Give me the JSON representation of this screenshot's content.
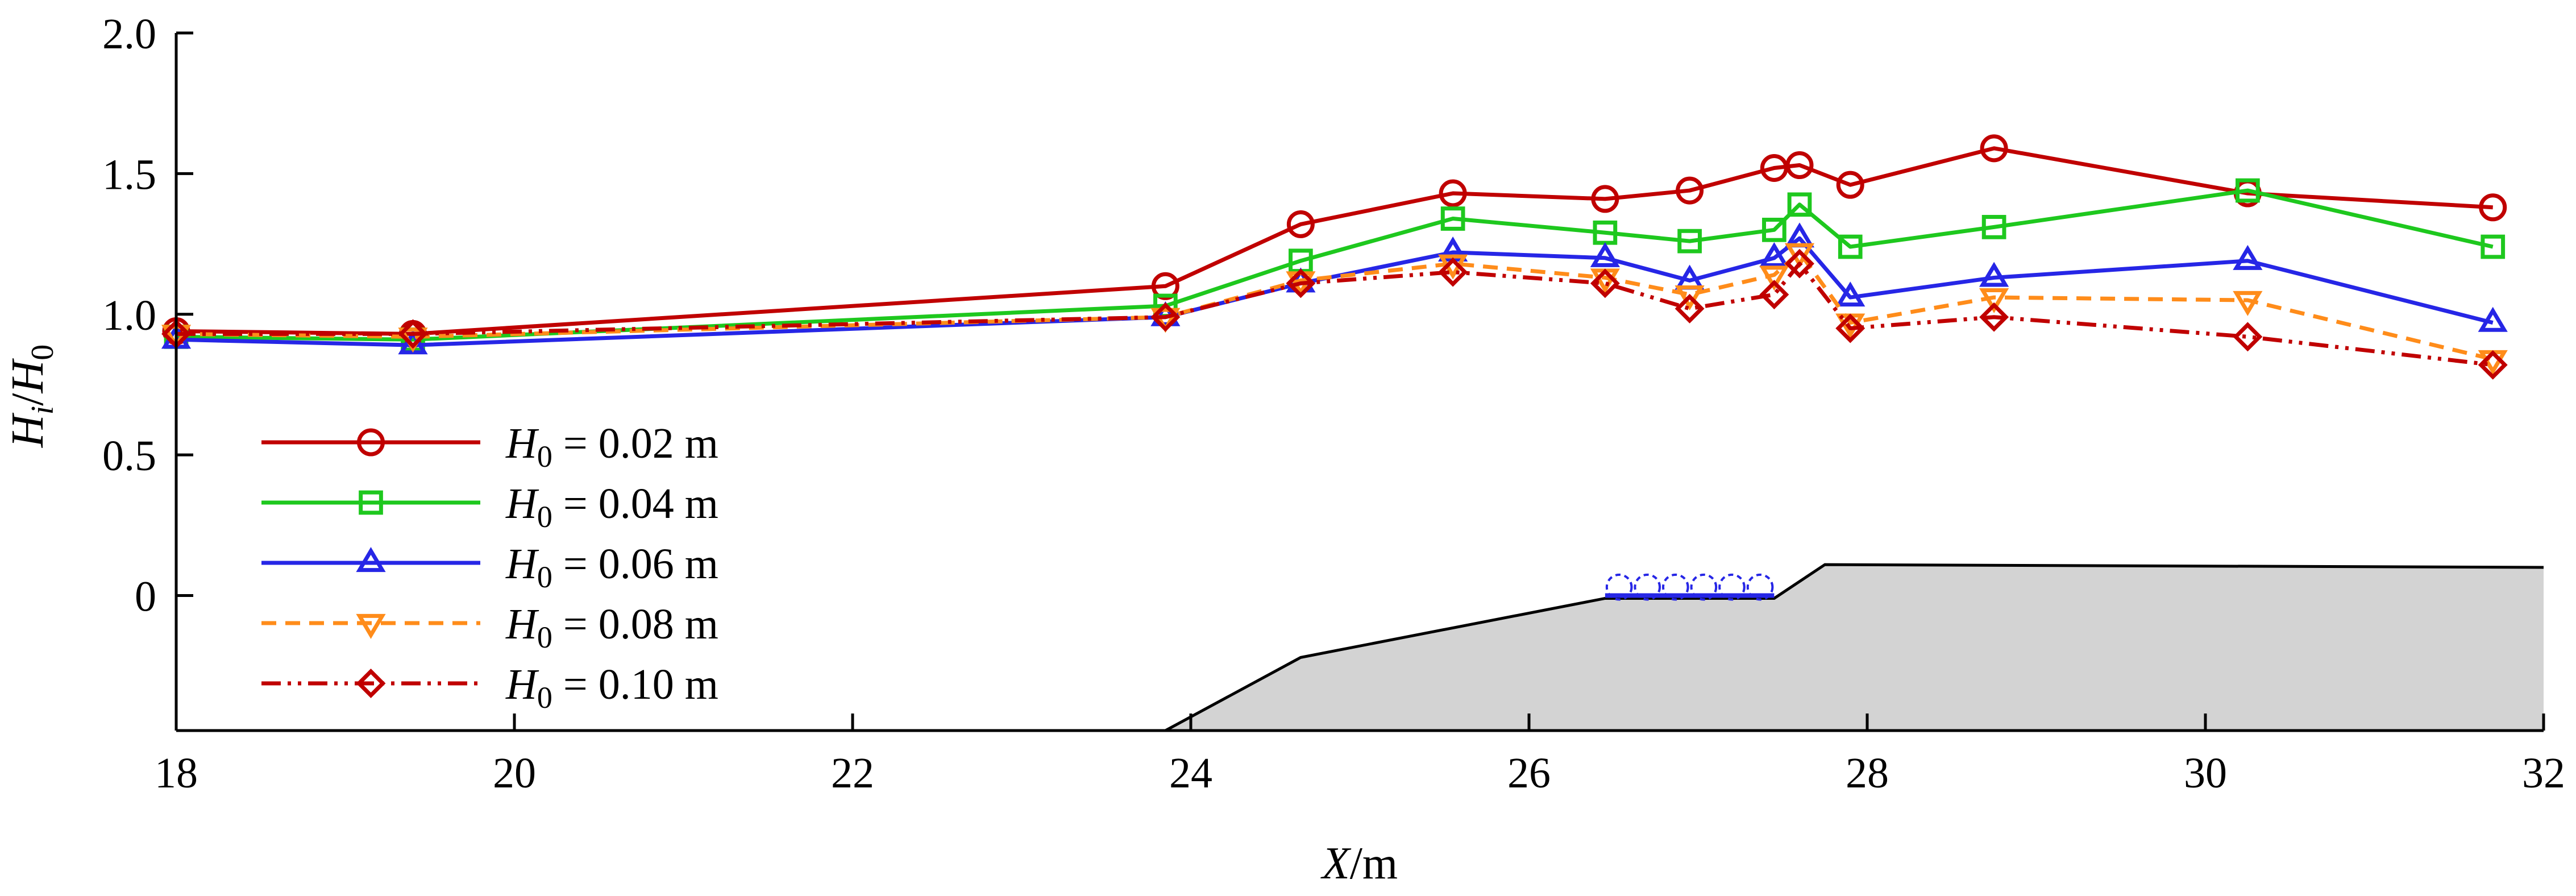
{
  "chart_data": {
    "type": "line",
    "x_axis": {
      "label_var": "X",
      "label_unit": "/m",
      "range": [
        18,
        32
      ],
      "ticks": [
        "18",
        "20",
        "22",
        "24",
        "26",
        "28",
        "30",
        "32"
      ]
    },
    "y_axis": {
      "label_var": "H",
      "label_sub": "i",
      "label_sep": "/",
      "label_var2": "H",
      "label_sub2": "0",
      "range": [
        -0.48,
        2.0
      ],
      "ticks": [
        {
          "v": 2.0,
          "t": "2.0"
        },
        {
          "v": 1.5,
          "t": "1.5"
        },
        {
          "v": 1.0,
          "t": "1.0"
        },
        {
          "v": 0.5,
          "t": "0.5"
        },
        {
          "v": 0.0,
          "t": "0"
        }
      ]
    },
    "legend_position": "bottom-left",
    "series": [
      {
        "name": "H0 = 0.02 m",
        "legend": {
          "var": "H",
          "sub": "0",
          "text": " = 0.02 m"
        },
        "color": "#c00000",
        "marker": "circle",
        "dash": "solid",
        "x": [
          18,
          19.4,
          23.85,
          24.65,
          25.55,
          26.45,
          26.95,
          27.45,
          27.6,
          27.9,
          28.75,
          30.25,
          31.7
        ],
        "y": [
          0.94,
          0.93,
          1.1,
          1.32,
          1.43,
          1.41,
          1.44,
          1.52,
          1.53,
          1.46,
          1.59,
          1.43,
          1.38
        ]
      },
      {
        "name": "H0 = 0.04 m",
        "legend": {
          "var": "H",
          "sub": "0",
          "text": " = 0.04 m"
        },
        "color": "#1ec81e",
        "marker": "square",
        "dash": "solid",
        "x": [
          18,
          19.4,
          23.85,
          24.65,
          25.55,
          26.45,
          26.95,
          27.45,
          27.6,
          27.9,
          28.75,
          30.25,
          31.7
        ],
        "y": [
          0.92,
          0.91,
          1.03,
          1.19,
          1.34,
          1.29,
          1.26,
          1.3,
          1.39,
          1.24,
          1.31,
          1.44,
          1.24
        ]
      },
      {
        "name": "H0 = 0.06 m",
        "legend": {
          "var": "H",
          "sub": "0",
          "text": " = 0.06 m"
        },
        "color": "#2626e6",
        "marker": "triangle",
        "dash": "solid",
        "x": [
          18,
          19.4,
          23.85,
          24.65,
          25.55,
          26.45,
          26.95,
          27.45,
          27.6,
          27.9,
          28.75,
          30.25,
          31.7
        ],
        "y": [
          0.91,
          0.89,
          0.99,
          1.11,
          1.22,
          1.2,
          1.12,
          1.2,
          1.27,
          1.06,
          1.13,
          1.19,
          0.97
        ]
      },
      {
        "name": "H0 = 0.08 m",
        "legend": {
          "var": "H",
          "sub": "0",
          "text": " = 0.08 m"
        },
        "color": "#ff8c1a",
        "marker": "triangle-down",
        "dash": "dashed",
        "x": [
          18,
          19.4,
          23.85,
          24.65,
          25.55,
          26.45,
          26.95,
          27.45,
          27.6,
          27.9,
          28.75,
          30.25,
          31.7
        ],
        "y": [
          0.93,
          0.92,
          0.99,
          1.12,
          1.18,
          1.13,
          1.07,
          1.14,
          1.22,
          0.97,
          1.06,
          1.05,
          0.84
        ]
      },
      {
        "name": "H0 = 0.10 m",
        "legend": {
          "var": "H",
          "sub": "0",
          "text": " = 0.10 m"
        },
        "color": "#c00000",
        "marker": "diamond",
        "dash": "dash-dot-dot",
        "x": [
          18,
          19.4,
          23.85,
          24.65,
          25.55,
          26.45,
          26.95,
          27.45,
          27.6,
          27.9,
          28.75,
          30.25,
          31.7
        ],
        "y": [
          0.93,
          0.93,
          0.99,
          1.11,
          1.15,
          1.11,
          1.02,
          1.07,
          1.18,
          0.95,
          0.99,
          0.92,
          0.82
        ]
      }
    ],
    "bathymetry": {
      "fill_color": "#d3d3d3",
      "x": [
        23.85,
        24.65,
        26.45,
        27.45,
        27.75,
        32
      ],
      "y": [
        -0.48,
        -0.22,
        -0.01,
        -0.01,
        0.11,
        0.1
      ]
    },
    "structure": {
      "color": "#2626e6",
      "x_range": [
        26.45,
        27.45
      ],
      "y": 0.03,
      "units": 6
    }
  }
}
